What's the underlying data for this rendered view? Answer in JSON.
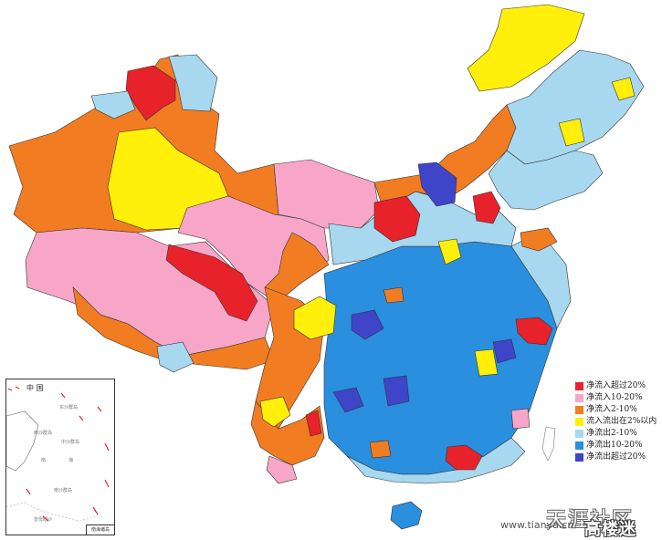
{
  "legend": {
    "items": [
      {
        "label": "净流入超过20%",
        "color": "#e8222a"
      },
      {
        "label": "净流入10-20%",
        "color": "#f7a6c8"
      },
      {
        "label": "净流入2-10%",
        "color": "#f27c22"
      },
      {
        "label": "流入流出在2%以内",
        "color": "#ffef0a"
      },
      {
        "label": "净流出2-10%",
        "color": "#a7d8ef"
      },
      {
        "label": "净流出10-20%",
        "color": "#2a8fde"
      },
      {
        "label": "净流出超过20%",
        "color": "#3e45c9"
      }
    ]
  },
  "inset": {
    "title": "中 国",
    "labels": [
      "东沙群岛",
      "西沙群岛",
      "中沙群岛",
      "南",
      "海",
      "南沙群岛",
      "曾母暗沙"
    ],
    "box_label": "南海诸岛"
  },
  "watermark": {
    "site_cn": "天涯社区",
    "url": "www.tianya.cn",
    "logo": "高楼迷"
  }
}
